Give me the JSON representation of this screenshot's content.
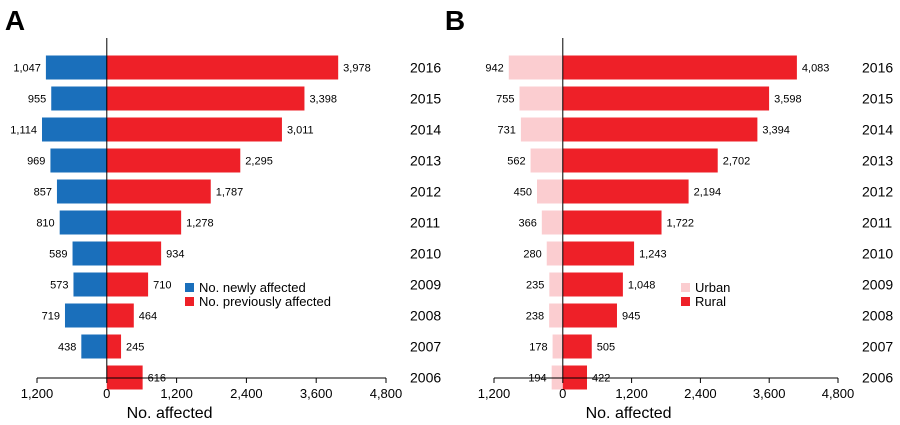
{
  "chart_data": [
    {
      "type": "bar",
      "panel": "A",
      "xlabel": "No. affected",
      "xlim": [
        -1200,
        4800
      ],
      "xticks": [
        -1200,
        0,
        1200,
        2400,
        3600,
        4800
      ],
      "xtick_labels": [
        "1,200",
        "0",
        "1,200",
        "2,400",
        "3,600",
        "4,800"
      ],
      "categories": [
        "2016",
        "2015",
        "2014",
        "2013",
        "2012",
        "2011",
        "2010",
        "2009",
        "2008",
        "2007",
        "2006"
      ],
      "series": [
        {
          "name": "No. newly affected",
          "color": "#1a6fbb",
          "direction": "left",
          "values": [
            1047,
            955,
            1114,
            969,
            857,
            810,
            589,
            573,
            719,
            438,
            null
          ],
          "labels": [
            "1,047",
            "955",
            "1,114",
            "969",
            "857",
            "810",
            "589",
            "573",
            "719",
            "438",
            ""
          ]
        },
        {
          "name": "No. previously affected",
          "color": "#ee2028",
          "direction": "right",
          "values": [
            3978,
            3398,
            3011,
            2295,
            1787,
            1278,
            934,
            710,
            464,
            245,
            616
          ],
          "labels": [
            "3,978",
            "3,398",
            "3,011",
            "2,295",
            "1,787",
            "1,278",
            "934",
            "710",
            "464",
            "245",
            "616"
          ]
        }
      ],
      "legend_position": "center-right"
    },
    {
      "type": "bar",
      "panel": "B",
      "xlabel": "No. affected",
      "xlim": [
        -1200,
        4800
      ],
      "xticks": [
        -1200,
        0,
        1200,
        2400,
        3600,
        4800
      ],
      "xtick_labels": [
        "1,200",
        "0",
        "1,200",
        "2,400",
        "3,600",
        "4,800"
      ],
      "categories": [
        "2016",
        "2015",
        "2014",
        "2013",
        "2012",
        "2011",
        "2010",
        "2009",
        "2008",
        "2007",
        "2006"
      ],
      "series": [
        {
          "name": "Urban",
          "color": "#fbcdd0",
          "direction": "left",
          "values": [
            942,
            755,
            731,
            562,
            450,
            366,
            280,
            235,
            238,
            178,
            194
          ],
          "labels": [
            "942",
            "755",
            "731",
            "562",
            "450",
            "366",
            "280",
            "235",
            "238",
            "178",
            "194"
          ]
        },
        {
          "name": "Rural",
          "color": "#ee2028",
          "direction": "right",
          "values": [
            4083,
            3598,
            3394,
            2702,
            2194,
            1722,
            1243,
            1048,
            945,
            505,
            422
          ],
          "labels": [
            "4,083",
            "3,598",
            "3,394",
            "2,702",
            "2,194",
            "1,722",
            "1,243",
            "1,048",
            "945",
            "505",
            "422"
          ]
        }
      ],
      "legend_position": "center-right"
    }
  ]
}
